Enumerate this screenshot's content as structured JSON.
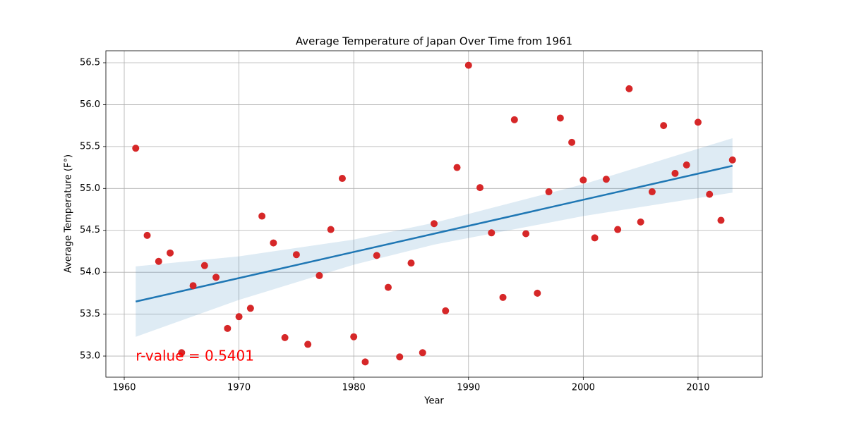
{
  "chart_data": {
    "type": "scatter",
    "title": "Average Temperature of Japan Over Time from 1961",
    "xlabel": "Year",
    "ylabel": "Average Temperature (F°)",
    "x": [
      1961,
      1962,
      1963,
      1964,
      1965,
      1966,
      1967,
      1968,
      1969,
      1970,
      1971,
      1972,
      1973,
      1974,
      1975,
      1976,
      1977,
      1978,
      1979,
      1980,
      1981,
      1982,
      1983,
      1984,
      1985,
      1986,
      1987,
      1988,
      1989,
      1990,
      1991,
      1992,
      1993,
      1994,
      1995,
      1996,
      1997,
      1998,
      1999,
      2000,
      2001,
      2002,
      2003,
      2004,
      2005,
      2006,
      2007,
      2008,
      2009,
      2010,
      2011,
      2012,
      2013
    ],
    "values": [
      55.48,
      54.44,
      54.13,
      54.23,
      53.04,
      53.84,
      54.08,
      53.94,
      53.33,
      53.47,
      53.57,
      54.67,
      54.35,
      53.22,
      54.21,
      53.14,
      53.96,
      54.51,
      55.12,
      53.23,
      52.93,
      54.2,
      53.82,
      52.99,
      54.11,
      53.04,
      54.58,
      53.54,
      55.25,
      56.47,
      55.01,
      54.47,
      53.7,
      55.82,
      54.46,
      53.75,
      54.96,
      55.84,
      55.55,
      55.1,
      54.41,
      55.11,
      54.51,
      56.19,
      54.6,
      54.96,
      55.75,
      55.18,
      55.28,
      55.79,
      54.93,
      54.62,
      55.34
    ],
    "color": "#d62728",
    "fit": {
      "x": [
        1961,
        2013
      ],
      "values": [
        53.65,
        55.27
      ],
      "color": "#1f77b4"
    },
    "band": {
      "x": [
        1961,
        1970,
        1980,
        1987,
        2000,
        2013
      ],
      "lower": [
        53.23,
        53.67,
        54.09,
        54.33,
        54.67,
        54.95
      ],
      "upper": [
        54.07,
        54.19,
        54.39,
        54.59,
        55.05,
        55.6
      ],
      "color": "#1f77b4"
    },
    "annotation": "r-value = 0.5401",
    "annotation_color": "#ff0000",
    "xlim": [
      1958.4,
      2015.6
    ],
    "ylim": [
      52.748,
      56.643
    ],
    "xticks": [
      1960,
      1970,
      1980,
      1990,
      2000,
      2010
    ],
    "yticks": [
      {
        "value": 53,
        "label": "53.0"
      },
      53.5,
      {
        "value": 54,
        "label": "54.0"
      },
      54.5,
      {
        "value": 55,
        "label": "55.0"
      },
      55.5,
      {
        "value": 56,
        "label": "56.0"
      },
      56.5
    ],
    "grid": true
  }
}
